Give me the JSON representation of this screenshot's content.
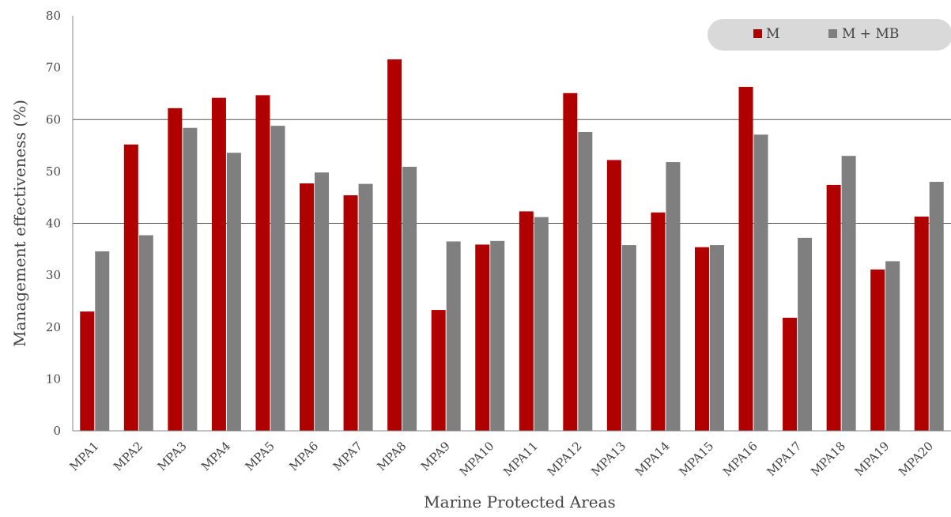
{
  "chart_data": {
    "type": "bar",
    "title": "",
    "xlabel": "Marine Protected Areas",
    "ylabel": "Management effectiveness  (%)",
    "ylim": [
      0,
      80
    ],
    "yticks": [
      0,
      10,
      20,
      30,
      40,
      50,
      60,
      70,
      80
    ],
    "gridlines_at": [
      40,
      60
    ],
    "legend_position": "top-right",
    "categories": [
      "MPA1",
      "MPA2",
      "MPA3",
      "MPA4",
      "MPA5",
      "MPA6",
      "MPA7",
      "MPA8",
      "MPA9",
      "MPA10",
      "MPA11",
      "MPA12",
      "MPA13",
      "MPA14",
      "MPA15",
      "MPA16",
      "MPA17",
      "MPA18",
      "MPA19",
      "MPA20"
    ],
    "series": [
      {
        "name": "M",
        "color": "#b00000",
        "values": [
          23.0,
          55.2,
          62.2,
          64.2,
          64.7,
          47.7,
          45.4,
          71.6,
          23.3,
          35.9,
          42.3,
          65.1,
          52.2,
          42.1,
          35.4,
          66.3,
          21.8,
          47.4,
          31.1,
          41.3
        ]
      },
      {
        "name": "M + MB",
        "color": "#7f7f7f",
        "values": [
          34.6,
          37.7,
          58.4,
          53.6,
          58.8,
          49.8,
          47.6,
          50.9,
          36.5,
          36.6,
          41.2,
          57.6,
          35.8,
          51.8,
          35.8,
          57.1,
          37.2,
          53.0,
          32.7,
          48.0
        ]
      }
    ]
  }
}
